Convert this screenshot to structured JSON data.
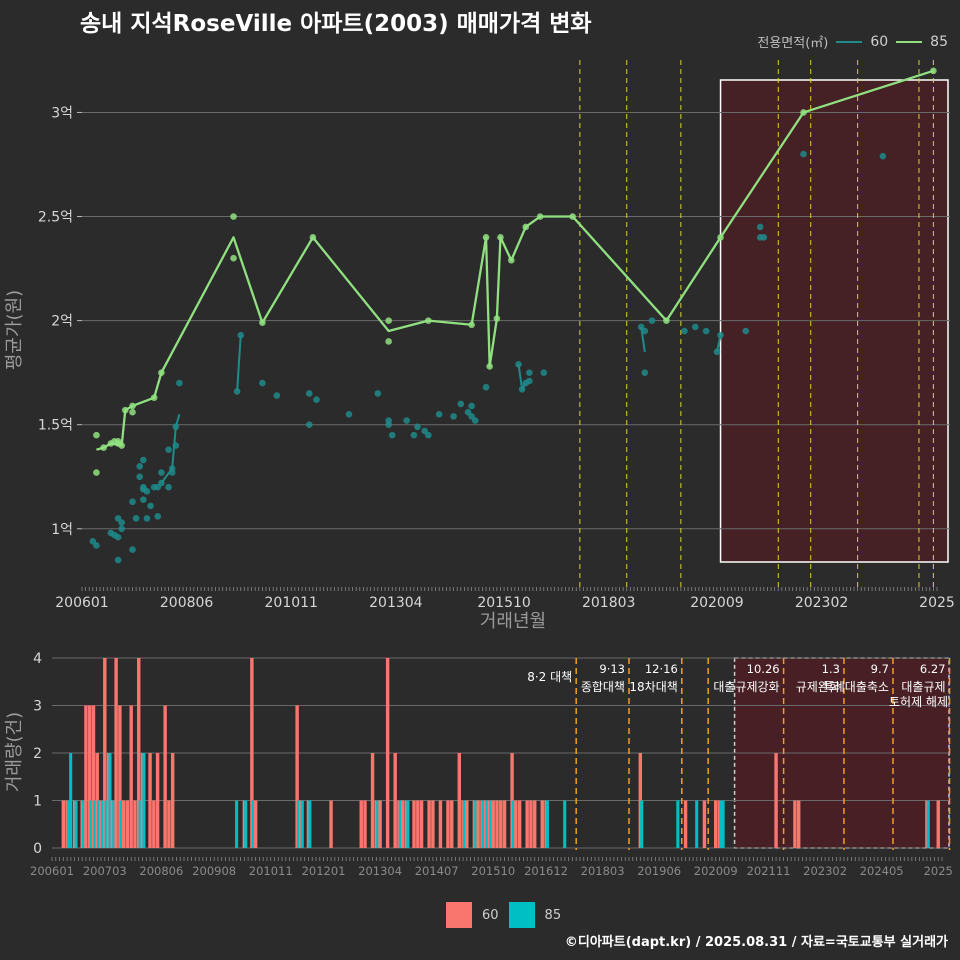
{
  "title": "송내 지석RoseVille 아파트(2003) 매매가격 변화",
  "legend_top": {
    "title": "전용면적(㎡)",
    "items": [
      {
        "label": "60",
        "color": "#1f8b8b"
      },
      {
        "label": "85",
        "color": "#90e080"
      }
    ]
  },
  "legend_bottom": {
    "items": [
      {
        "label": "60",
        "color": "#f8766d"
      },
      {
        "label": "85",
        "color": "#00bfc4"
      }
    ]
  },
  "credit": "©디아파트(dapt.kr) / 2025.08.31 / 자료=국토교통부 실거래가",
  "chart_data": [
    {
      "type": "line",
      "xlabel": "거래년월",
      "ylabel": "평균가(원)",
      "x_ticks": [
        "200601",
        "200806",
        "201011",
        "201304",
        "201510",
        "201803",
        "202009",
        "202302",
        "2025"
      ],
      "y_ticks": [
        "1억",
        "1.5억",
        "2억",
        "2.5억",
        "3억"
      ],
      "y_tick_values": [
        1.0,
        1.5,
        2.0,
        2.5,
        3.0
      ],
      "ylim": [
        0.73,
        3.3
      ],
      "x_unit": "months since 2006-01",
      "xlim": [
        0,
        237
      ],
      "policy_lines": [
        138,
        151,
        166,
        193,
        202,
        215,
        232,
        236
      ],
      "highlight_range": [
        177,
        241
      ],
      "grid": true,
      "series": [
        {
          "name": "85",
          "color": "#90e080",
          "points": [
            [
              4,
              1.27
            ],
            [
              4,
              1.45
            ],
            [
              6,
              1.39
            ],
            [
              8,
              1.41
            ],
            [
              9,
              1.42
            ],
            [
              10,
              1.42
            ],
            [
              10,
              1.41
            ],
            [
              11,
              1.4
            ],
            [
              12,
              1.57
            ],
            [
              14,
              1.59
            ],
            [
              14,
              1.56
            ],
            [
              20,
              1.63
            ],
            [
              22,
              1.75
            ],
            [
              42,
              2.5
            ],
            [
              42,
              2.3
            ],
            [
              50,
              1.99
            ],
            [
              64,
              2.4
            ],
            [
              85,
              2.0
            ],
            [
              85,
              1.9
            ],
            [
              96,
              2.0
            ],
            [
              108,
              1.98
            ],
            [
              112,
              2.4
            ],
            [
              113,
              1.78
            ],
            [
              115,
              2.01
            ],
            [
              116,
              2.4
            ],
            [
              119,
              2.29
            ],
            [
              123,
              2.45
            ],
            [
              127,
              2.5
            ],
            [
              136,
              2.5
            ],
            [
              162,
              2.0
            ],
            [
              177,
              2.4
            ],
            [
              200,
              3.0
            ],
            [
              236,
              3.2
            ]
          ],
          "line": [
            [
              4,
              1.38
            ],
            [
              6,
              1.39
            ],
            [
              8,
              1.41
            ],
            [
              11,
              1.4
            ],
            [
              12,
              1.57
            ],
            [
              14,
              1.59
            ],
            [
              20,
              1.63
            ],
            [
              22,
              1.75
            ],
            [
              42,
              2.4
            ],
            [
              50,
              1.99
            ],
            [
              64,
              2.4
            ],
            [
              85,
              1.95
            ],
            [
              96,
              2.0
            ],
            [
              108,
              1.98
            ],
            [
              112,
              2.4
            ],
            [
              113,
              1.78
            ],
            [
              115,
              2.01
            ],
            [
              116,
              2.4
            ],
            [
              119,
              2.29
            ],
            [
              123,
              2.45
            ],
            [
              127,
              2.5
            ],
            [
              136,
              2.5
            ],
            [
              162,
              2.0
            ],
            [
              177,
              2.4
            ],
            [
              200,
              3.0
            ],
            [
              236,
              3.2
            ]
          ]
        },
        {
          "name": "60",
          "color": "#1f8b8b",
          "points": [
            [
              3,
              0.94
            ],
            [
              4,
              0.92
            ],
            [
              8,
              0.98
            ],
            [
              9,
              0.97
            ],
            [
              10,
              1.05
            ],
            [
              10,
              0.96
            ],
            [
              10,
              0.85
            ],
            [
              11,
              1.03
            ],
            [
              11,
              1.0
            ],
            [
              14,
              1.13
            ],
            [
              14,
              0.9
            ],
            [
              15,
              1.05
            ],
            [
              16,
              1.3
            ],
            [
              16,
              1.25
            ],
            [
              17,
              1.33
            ],
            [
              17,
              1.2
            ],
            [
              17,
              1.19
            ],
            [
              17,
              1.14
            ],
            [
              18,
              1.05
            ],
            [
              18,
              1.18
            ],
            [
              19,
              1.11
            ],
            [
              20,
              1.2
            ],
            [
              21,
              1.2
            ],
            [
              21,
              1.06
            ],
            [
              22,
              1.22
            ],
            [
              22,
              1.27
            ],
            [
              24,
              1.38
            ],
            [
              24,
              1.2
            ],
            [
              25,
              1.27
            ],
            [
              25,
              1.29
            ],
            [
              26,
              1.49
            ],
            [
              26,
              1.4
            ],
            [
              27,
              1.7
            ],
            [
              43,
              1.66
            ],
            [
              44,
              1.93
            ],
            [
              50,
              1.7
            ],
            [
              54,
              1.64
            ],
            [
              63,
              1.65
            ],
            [
              63,
              1.5
            ],
            [
              65,
              1.62
            ],
            [
              74,
              1.55
            ],
            [
              82,
              1.65
            ],
            [
              85,
              1.52
            ],
            [
              85,
              1.5
            ],
            [
              86,
              1.45
            ],
            [
              90,
              1.52
            ],
            [
              92,
              1.45
            ],
            [
              93,
              1.49
            ],
            [
              95,
              1.47
            ],
            [
              96,
              1.45
            ],
            [
              99,
              1.55
            ],
            [
              103,
              1.54
            ],
            [
              105,
              1.6
            ],
            [
              107,
              1.56
            ],
            [
              108,
              1.59
            ],
            [
              108,
              1.54
            ],
            [
              109,
              1.52
            ],
            [
              112,
              1.68
            ],
            [
              121,
              1.79
            ],
            [
              122,
              1.67
            ],
            [
              123,
              1.7
            ],
            [
              124,
              1.75
            ],
            [
              124,
              1.71
            ],
            [
              128,
              1.75
            ],
            [
              155,
              1.97
            ],
            [
              156,
              1.95
            ],
            [
              156,
              1.75
            ],
            [
              158,
              2.0
            ],
            [
              167,
              1.95
            ],
            [
              170,
              1.97
            ],
            [
              173,
              1.95
            ],
            [
              176,
              1.85
            ],
            [
              177,
              1.93
            ],
            [
              184,
              1.95
            ],
            [
              188,
              2.45
            ],
            [
              188,
              2.4
            ],
            [
              189,
              2.4
            ],
            [
              200,
              2.8
            ],
            [
              222,
              2.79
            ]
          ],
          "line": [
            [
              22,
              1.22
            ],
            [
              25,
              1.29
            ],
            [
              26,
              1.49
            ],
            [
              27,
              1.55
            ],
            [
              43,
              1.66
            ],
            [
              44,
              1.93
            ],
            [
              121,
              1.79
            ],
            [
              122,
              1.67
            ],
            [
              123,
              1.7
            ],
            [
              155,
              1.97
            ],
            [
              156,
              1.85
            ],
            [
              176,
              1.85
            ],
            [
              177,
              1.93
            ]
          ]
        }
      ]
    },
    {
      "type": "bar",
      "xlabel": "",
      "ylabel": "거래량(건)",
      "x_ticks": [
        "200601",
        "200703",
        "200806",
        "200908",
        "201011",
        "201201",
        "201304",
        "201407",
        "201510",
        "201612",
        "201803",
        "201906",
        "202009",
        "202111",
        "202302",
        "202405",
        "2025"
      ],
      "y_ticks": [
        "0",
        "1",
        "2",
        "3",
        "4"
      ],
      "ylim": [
        0,
        4.2
      ],
      "x_unit": "months since 2006-01",
      "xlim": [
        0,
        236
      ],
      "highlight_range": [
        181,
        242
      ],
      "series": [
        {
          "name": "60",
          "color": "#f8766d"
        },
        {
          "name": "85",
          "color": "#00bfc4"
        }
      ],
      "bars": [
        [
          3,
          1,
          0
        ],
        [
          4,
          1,
          1
        ],
        [
          5,
          0,
          2
        ],
        [
          6,
          1,
          1
        ],
        [
          8,
          1,
          1
        ],
        [
          9,
          3,
          0
        ],
        [
          10,
          3,
          1
        ],
        [
          11,
          3,
          1
        ],
        [
          12,
          2,
          1
        ],
        [
          13,
          1,
          1
        ],
        [
          14,
          4,
          1
        ],
        [
          15,
          2,
          2
        ],
        [
          16,
          1,
          1
        ],
        [
          17,
          4,
          0
        ],
        [
          18,
          3,
          1
        ],
        [
          19,
          1,
          0
        ],
        [
          20,
          1,
          0
        ],
        [
          21,
          3,
          0
        ],
        [
          22,
          1,
          0
        ],
        [
          23,
          4,
          1
        ],
        [
          24,
          2,
          2
        ],
        [
          26,
          2,
          0
        ],
        [
          27,
          1,
          0
        ],
        [
          28,
          2,
          0
        ],
        [
          30,
          3,
          0
        ],
        [
          31,
          1,
          0
        ],
        [
          32,
          2,
          0
        ],
        [
          49,
          0,
          1
        ],
        [
          51,
          1,
          1
        ],
        [
          53,
          4,
          1
        ],
        [
          54,
          1,
          0
        ],
        [
          65,
          3,
          1
        ],
        [
          66,
          1,
          1
        ],
        [
          68,
          1,
          1
        ],
        [
          74,
          1,
          0
        ],
        [
          82,
          1,
          0
        ],
        [
          83,
          1,
          0
        ],
        [
          85,
          2,
          0
        ],
        [
          86,
          1,
          1
        ],
        [
          87,
          1,
          0
        ],
        [
          89,
          4,
          0
        ],
        [
          91,
          2,
          0
        ],
        [
          92,
          1,
          1
        ],
        [
          93,
          1,
          0
        ],
        [
          94,
          1,
          1
        ],
        [
          96,
          1,
          0
        ],
        [
          97,
          1,
          0
        ],
        [
          98,
          1,
          0
        ],
        [
          100,
          1,
          0
        ],
        [
          101,
          1,
          0
        ],
        [
          103,
          1,
          0
        ],
        [
          105,
          1,
          0
        ],
        [
          106,
          1,
          0
        ],
        [
          108,
          2,
          0
        ],
        [
          109,
          1,
          1
        ],
        [
          110,
          1,
          0
        ],
        [
          112,
          1,
          1
        ],
        [
          113,
          1,
          0
        ],
        [
          114,
          1,
          1
        ],
        [
          115,
          1,
          1
        ],
        [
          116,
          1,
          1
        ],
        [
          117,
          1,
          0
        ],
        [
          118,
          1,
          0
        ],
        [
          119,
          1,
          0
        ],
        [
          120,
          1,
          0
        ],
        [
          122,
          2,
          1
        ],
        [
          123,
          1,
          0
        ],
        [
          124,
          1,
          0
        ],
        [
          126,
          1,
          0
        ],
        [
          127,
          1,
          0
        ],
        [
          128,
          1,
          0
        ],
        [
          130,
          1,
          0
        ],
        [
          131,
          1,
          1
        ],
        [
          136,
          0,
          1
        ],
        [
          156,
          2,
          1
        ],
        [
          166,
          0,
          1
        ],
        [
          168,
          1,
          0
        ],
        [
          171,
          0,
          1
        ],
        [
          173,
          1,
          0
        ],
        [
          176,
          1,
          0
        ],
        [
          177,
          1,
          1
        ],
        [
          178,
          0,
          1
        ],
        [
          192,
          2,
          0
        ],
        [
          197,
          1,
          0
        ],
        [
          198,
          1,
          0
        ],
        [
          232,
          1,
          1
        ],
        [
          235,
          1,
          0
        ]
      ],
      "policies": [
        {
          "x": 139,
          "date": "",
          "label": "8·2 대책"
        },
        {
          "x": 153,
          "date": "9·13",
          "label": "종합대책"
        },
        {
          "x": 167,
          "date": "12·16",
          "label": "18차대책"
        },
        {
          "x": 174,
          "date": "",
          "label": ""
        },
        {
          "x": 194,
          "date": "10.26",
          "label": "대출규제강화"
        },
        {
          "x": 210,
          "date": "1.3",
          "label": "규제완화"
        },
        {
          "x": 223,
          "date": "9.7",
          "label": "특례대출축소"
        },
        {
          "x": 238,
          "date": "6.27",
          "label": "대출규제"
        }
      ],
      "policy_labels_extra": [
        "토허제 해제"
      ]
    }
  ]
}
